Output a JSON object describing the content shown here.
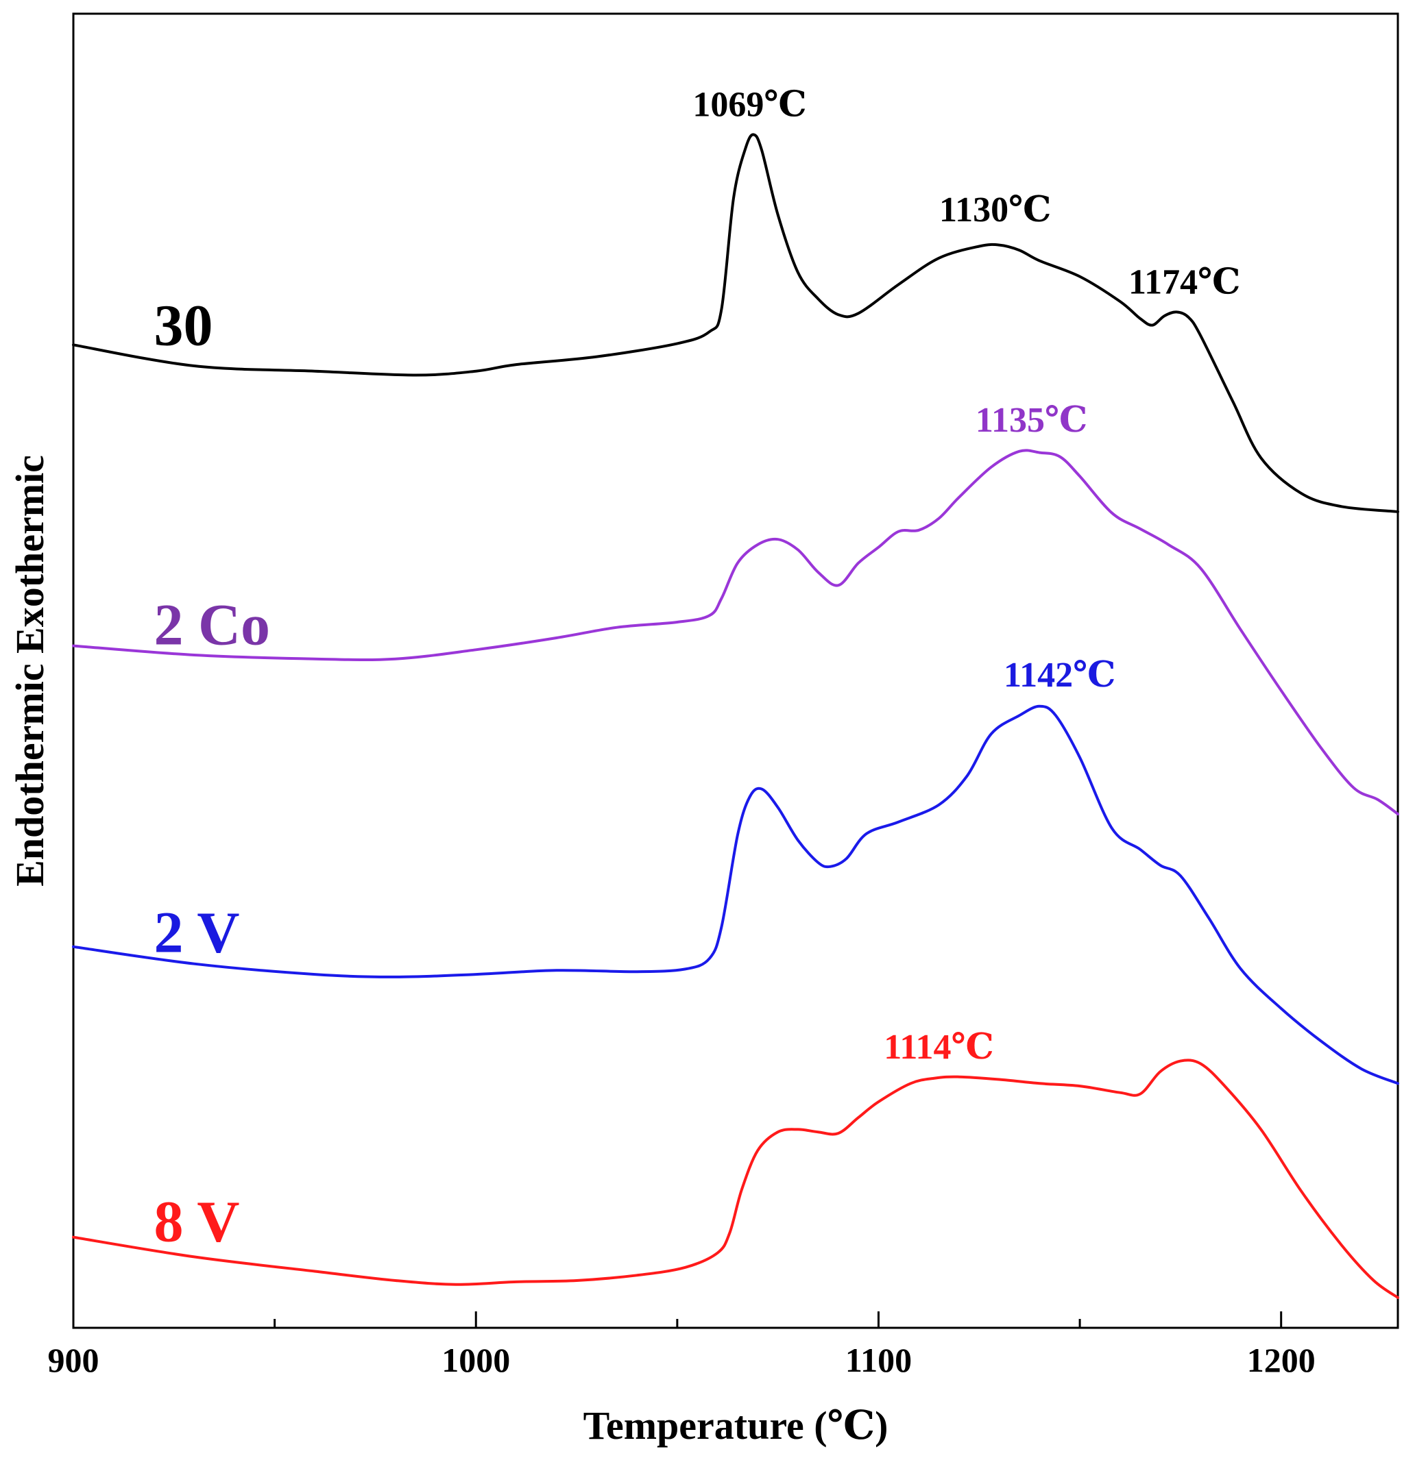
{
  "chart_data": {
    "type": "line",
    "title": "",
    "xlabel": "Temperature (℃)",
    "ylabel": "Endothermic Exothermic",
    "xlim": [
      900,
      1229
    ],
    "ylim": [
      0,
      100
    ],
    "x_ticks": [
      "900",
      "1000",
      "1100",
      "1200"
    ],
    "y_ticks": [],
    "grid": false,
    "legend": "none",
    "series": [
      {
        "name": "30",
        "color": "#000000",
        "points": [
          [
            900,
            74.8
          ],
          [
            930,
            73.2
          ],
          [
            960,
            72.8
          ],
          [
            985,
            72.5
          ],
          [
            1000,
            72.8
          ],
          [
            1010,
            73.3
          ],
          [
            1030,
            73.9
          ],
          [
            1050,
            74.9
          ],
          [
            1058,
            75.8
          ],
          [
            1061,
            77.5
          ],
          [
            1064,
            86
          ],
          [
            1067,
            89.8
          ],
          [
            1069,
            90.8
          ],
          [
            1071,
            89.6
          ],
          [
            1075,
            84.7
          ],
          [
            1080,
            80.3
          ],
          [
            1085,
            78.3
          ],
          [
            1090,
            77.1
          ],
          [
            1095,
            77.2
          ],
          [
            1105,
            79.4
          ],
          [
            1115,
            81.4
          ],
          [
            1125,
            82.3
          ],
          [
            1130,
            82.4
          ],
          [
            1135,
            82
          ],
          [
            1140,
            81.2
          ],
          [
            1150,
            80
          ],
          [
            1160,
            78.1
          ],
          [
            1165,
            76.8
          ],
          [
            1168,
            76.3
          ],
          [
            1171,
            77
          ],
          [
            1174,
            77.3
          ],
          [
            1177,
            76.9
          ],
          [
            1180,
            75.5
          ],
          [
            1188,
            70.5
          ],
          [
            1195,
            66.2
          ],
          [
            1205,
            63.5
          ],
          [
            1215,
            62.5
          ],
          [
            1229,
            62.1
          ]
        ]
      },
      {
        "name": "2 Co",
        "color": "#9a36d8",
        "points": [
          [
            900,
            51.9
          ],
          [
            930,
            51.2
          ],
          [
            960,
            50.9
          ],
          [
            980,
            50.9
          ],
          [
            1000,
            51.6
          ],
          [
            1020,
            52.5
          ],
          [
            1035,
            53.3
          ],
          [
            1050,
            53.7
          ],
          [
            1058,
            54.2
          ],
          [
            1061,
            55.5
          ],
          [
            1065,
            58.2
          ],
          [
            1070,
            59.6
          ],
          [
            1075,
            60
          ],
          [
            1080,
            59.2
          ],
          [
            1085,
            57.5
          ],
          [
            1090,
            56.5
          ],
          [
            1095,
            58.2
          ],
          [
            1100,
            59.4
          ],
          [
            1105,
            60.6
          ],
          [
            1110,
            60.7
          ],
          [
            1115,
            61.6
          ],
          [
            1120,
            63.2
          ],
          [
            1128,
            65.5
          ],
          [
            1135,
            66.7
          ],
          [
            1140,
            66.6
          ],
          [
            1145,
            66.3
          ],
          [
            1150,
            64.8
          ],
          [
            1158,
            62
          ],
          [
            1165,
            60.8
          ],
          [
            1172,
            59.6
          ],
          [
            1180,
            57.8
          ],
          [
            1190,
            53.1
          ],
          [
            1200,
            48.5
          ],
          [
            1210,
            44.1
          ],
          [
            1218,
            41.1
          ],
          [
            1224,
            40.2
          ],
          [
            1229,
            39.1
          ]
        ]
      },
      {
        "name": "2 V",
        "color": "#1a1aea",
        "points": [
          [
            900,
            29
          ],
          [
            930,
            27.7
          ],
          [
            960,
            26.9
          ],
          [
            980,
            26.7
          ],
          [
            1000,
            26.9
          ],
          [
            1020,
            27.2
          ],
          [
            1040,
            27.1
          ],
          [
            1052,
            27.3
          ],
          [
            1058,
            28.1
          ],
          [
            1061,
            30.5
          ],
          [
            1065,
            37.5
          ],
          [
            1068,
            40.4
          ],
          [
            1071,
            41
          ],
          [
            1075,
            39.6
          ],
          [
            1080,
            37.1
          ],
          [
            1085,
            35.4
          ],
          [
            1088,
            35.1
          ],
          [
            1092,
            35.7
          ],
          [
            1097,
            37.6
          ],
          [
            1105,
            38.5
          ],
          [
            1115,
            39.8
          ],
          [
            1122,
            42
          ],
          [
            1128,
            45.2
          ],
          [
            1135,
            46.6
          ],
          [
            1140,
            47.3
          ],
          [
            1144,
            46.6
          ],
          [
            1150,
            43.4
          ],
          [
            1158,
            38
          ],
          [
            1165,
            36.4
          ],
          [
            1170,
            35.2
          ],
          [
            1175,
            34.4
          ],
          [
            1182,
            31.2
          ],
          [
            1190,
            27.3
          ],
          [
            1200,
            24.3
          ],
          [
            1210,
            21.8
          ],
          [
            1220,
            19.7
          ],
          [
            1229,
            18.6
          ]
        ]
      },
      {
        "name": "8 V",
        "color": "#ff1a1a",
        "points": [
          [
            900,
            6.9
          ],
          [
            930,
            5.4
          ],
          [
            960,
            4.3
          ],
          [
            980,
            3.6
          ],
          [
            995,
            3.3
          ],
          [
            1010,
            3.5
          ],
          [
            1025,
            3.6
          ],
          [
            1040,
            4
          ],
          [
            1052,
            4.6
          ],
          [
            1060,
            5.7
          ],
          [
            1063,
            7.2
          ],
          [
            1066,
            10.5
          ],
          [
            1070,
            13.5
          ],
          [
            1075,
            14.9
          ],
          [
            1080,
            15.1
          ],
          [
            1085,
            14.9
          ],
          [
            1090,
            14.8
          ],
          [
            1095,
            16
          ],
          [
            1100,
            17.2
          ],
          [
            1108,
            18.6
          ],
          [
            1114,
            19
          ],
          [
            1120,
            19.1
          ],
          [
            1130,
            18.9
          ],
          [
            1140,
            18.6
          ],
          [
            1150,
            18.4
          ],
          [
            1160,
            17.9
          ],
          [
            1165,
            17.8
          ],
          [
            1170,
            19.5
          ],
          [
            1175,
            20.3
          ],
          [
            1180,
            20.1
          ],
          [
            1186,
            18.4
          ],
          [
            1195,
            15.1
          ],
          [
            1205,
            10.4
          ],
          [
            1215,
            6.3
          ],
          [
            1223,
            3.6
          ],
          [
            1229,
            2.3
          ]
        ]
      }
    ],
    "series_labels": [
      {
        "text": "30",
        "color": "#000000",
        "x": 920,
        "y": 74.8
      },
      {
        "text": "2 Co",
        "color": "#7a35a8",
        "x": 920,
        "y": 52.0
      },
      {
        "text": "2 V",
        "color": "#1a1ae0",
        "x": 920,
        "y": 28.6
      },
      {
        "text": "8 V",
        "color": "#ff1a1a",
        "x": 920,
        "y": 6.6
      }
    ],
    "annotations": [
      {
        "text": "1069℃",
        "color": "#000000",
        "x": 1068,
        "y": 92.2
      },
      {
        "text": "1130℃",
        "color": "#000000",
        "x": 1129,
        "y": 84.2
      },
      {
        "text": "1174℃",
        "color": "#000000",
        "x": 1176,
        "y": 78.7
      },
      {
        "text": "1135℃",
        "color": "#9035c8",
        "x": 1138,
        "y": 68.2
      },
      {
        "text": "1142℃",
        "color": "#1a1ae0",
        "x": 1145,
        "y": 48.8
      },
      {
        "text": "1114℃",
        "color": "#ff1a1a",
        "x": 1115,
        "y": 20.5
      }
    ]
  }
}
